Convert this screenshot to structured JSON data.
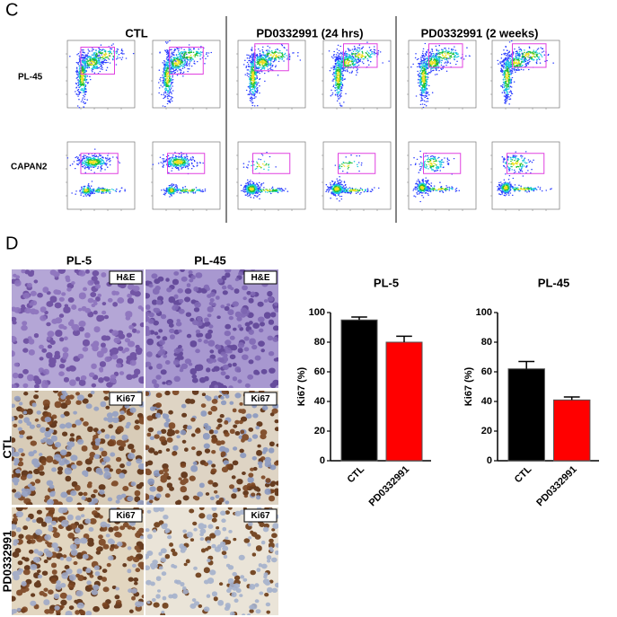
{
  "flow": {
    "label": "C",
    "columns": [
      "CTL",
      "PD0332991 (24 hrs)",
      "PD0332991 (2 weeks)"
    ],
    "rows": [
      "PL-45",
      "CAPAN2"
    ]
  },
  "histology": {
    "label": "D",
    "columns": [
      "PL-5",
      "PL-45"
    ],
    "rows": [
      "CTL",
      "PD0332991"
    ],
    "stains": [
      "H&E",
      "Ki67"
    ]
  },
  "chart_data": [
    {
      "type": "bar",
      "title": "PL-5",
      "ylabel": "Ki67 (%)",
      "categories": [
        "CTL",
        "PD0332991"
      ],
      "values": [
        95,
        80
      ],
      "errors": [
        2,
        4
      ],
      "colors": [
        "#000000",
        "#ff0000"
      ],
      "ylim": [
        0,
        100
      ],
      "yticks": [
        0,
        20,
        40,
        60,
        80,
        100
      ]
    },
    {
      "type": "bar",
      "title": "PL-45",
      "ylabel": "Ki67 (%)",
      "categories": [
        "CTL",
        "PD0332991"
      ],
      "values": [
        62,
        41
      ],
      "errors": [
        5,
        2
      ],
      "colors": [
        "#000000",
        "#ff0000"
      ],
      "ylim": [
        0,
        100
      ],
      "yticks": [
        0,
        20,
        40,
        60,
        80,
        100
      ]
    }
  ]
}
